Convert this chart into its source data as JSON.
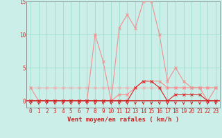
{
  "xlabel": "Vent moyen/en rafales ( km/h )",
  "x": [
    0,
    1,
    2,
    3,
    4,
    5,
    6,
    7,
    8,
    9,
    10,
    11,
    12,
    13,
    14,
    15,
    16,
    17,
    18,
    19,
    20,
    21,
    22,
    23
  ],
  "rafales": [
    2,
    0,
    0,
    0,
    0,
    0,
    0,
    0,
    10,
    6,
    0,
    11,
    13,
    11,
    15,
    15,
    10,
    3,
    5,
    3,
    2,
    2,
    0,
    2
  ],
  "vent_moyen": [
    0,
    0,
    0,
    0,
    0,
    0,
    0,
    0,
    0,
    0,
    0,
    0,
    0,
    2,
    3,
    3,
    2,
    0,
    1,
    1,
    1,
    1,
    0,
    0
  ],
  "line_flat": [
    2,
    2,
    2,
    2,
    2,
    2,
    2,
    2,
    2,
    2,
    2,
    2,
    2,
    2,
    2,
    2,
    2,
    2,
    2,
    2,
    2,
    2,
    2,
    2
  ],
  "line_rise": [
    0,
    0,
    0,
    0,
    0,
    0,
    0,
    0,
    0,
    0,
    0,
    1,
    1,
    2,
    3,
    3,
    3,
    2,
    2,
    2,
    2,
    2,
    2,
    2
  ],
  "bg_color": "#cceee8",
  "grid_color": "#99ddcc",
  "color_rafales": "#f09090",
  "color_vent": "#dd2222",
  "color_flat": "#f0b0b0",
  "color_rise": "#ff8888",
  "color_arrows": "#cc2222",
  "ylim": [
    -1,
    15
  ],
  "xlim": [
    -0.5,
    23.5
  ],
  "yticks": [
    0,
    5,
    10,
    15
  ],
  "xticks": [
    0,
    1,
    2,
    3,
    4,
    5,
    6,
    7,
    8,
    9,
    10,
    11,
    12,
    13,
    14,
    15,
    16,
    17,
    18,
    19,
    20,
    21,
    22,
    23
  ],
  "tick_fontsize": 5.5,
  "label_fontsize": 6.5
}
